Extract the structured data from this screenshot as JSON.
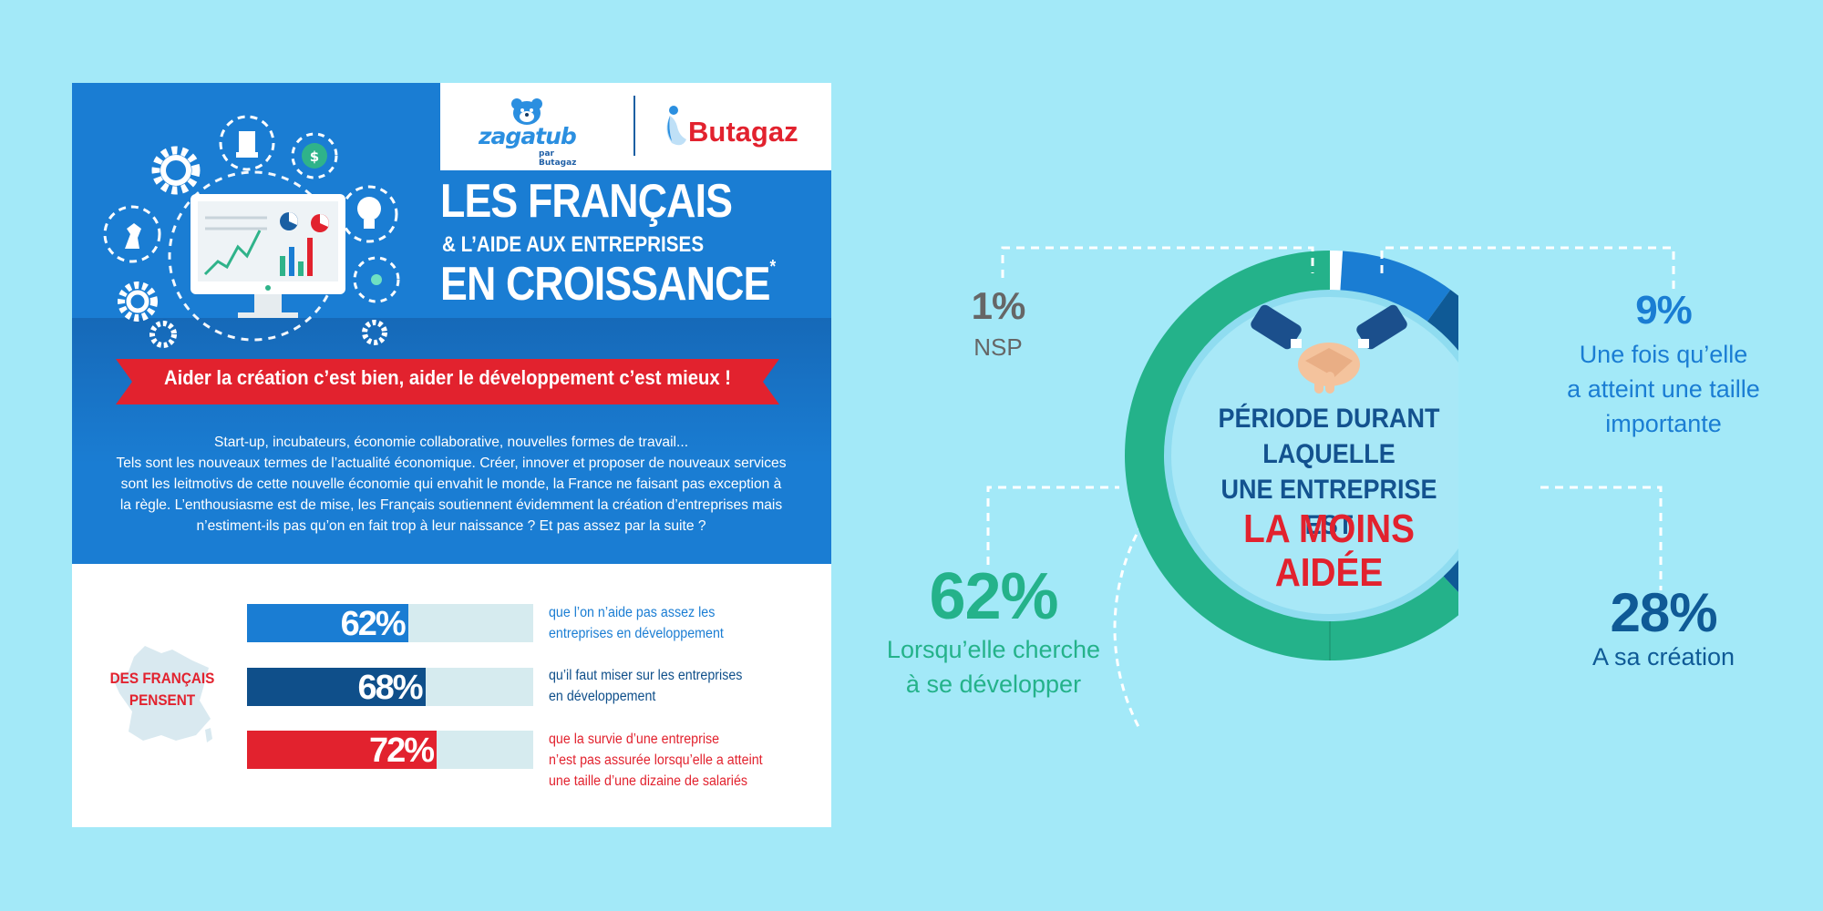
{
  "brand": {
    "zagatub_name": "zagatub",
    "zagatub_sub": "par Butagaz",
    "butagaz_name": "Butagaz"
  },
  "title": {
    "line1": "LES FRANÇAIS",
    "line2": "& L’AIDE AUX ENTREPRISES",
    "line3": "EN CROISSANCE",
    "asterisk": "*"
  },
  "ribbon": "Aider la création c’est bien, aider le développement c’est mieux !",
  "intro": [
    "Start-up, incubateurs, économie collaborative, nouvelles formes de travail...",
    "Tels sont les nouveaux termes de l’actualité économique. Créer, innover et proposer de nouveaux services",
    "sont les leitmotivs de cette nouvelle économie qui envahit le monde, la France ne faisant pas exception à",
    "la règle. L’enthousiasme est de mise, les Français soutiennent évidemment la création d’entreprises mais",
    "n’estiment-ils pas qu’on en fait trop à leur naissance ? Et pas assez par la suite ?"
  ],
  "opinion": {
    "label_line1": "DES FRANÇAIS",
    "label_line2": "PENSENT",
    "bars": [
      {
        "value_text": "62%",
        "value": 62,
        "color": "#1a7dd3",
        "desc_line1": "que l’on n’aide pas assez les",
        "desc_line2": "entreprises en développement",
        "desc_line3": "",
        "desc_color": "#1a7dd3"
      },
      {
        "value_text": "68%",
        "value": 68,
        "color": "#0f4f8a",
        "desc_line1": "qu’il faut miser sur les entreprises",
        "desc_line2": "en développement",
        "desc_line3": "",
        "desc_color": "#0f4f8a"
      },
      {
        "value_text": "72%",
        "value": 72,
        "color": "#e2222e",
        "desc_line1": "que la survie d’une entreprise",
        "desc_line2": "n’est pas assurée lorsqu’elle a atteint",
        "desc_line3": "une taille d’une dizaine de salariés",
        "desc_color": "#e2222e"
      }
    ]
  },
  "donut": {
    "center_line1": "PÉRIODE DURANT",
    "center_line2": "LAQUELLE",
    "center_line3": "UNE ENTREPRISE EST",
    "center_red_line1": "LA MOINS",
    "center_red_line2": "AIDÉE",
    "segments": [
      {
        "pct": "1%",
        "value": 1,
        "label_line1": "NSP",
        "label_line2": "",
        "label_line3": "",
        "color": "#ffffff"
      },
      {
        "pct": "9%",
        "value": 9,
        "label_line1": "Une fois qu’elle",
        "label_line2": "a atteint une taille",
        "label_line3": "importante",
        "color": "#1a7dd3"
      },
      {
        "pct": "28%",
        "value": 28,
        "label_line1": "A sa création",
        "label_line2": "",
        "label_line3": "",
        "color": "#0f5a96"
      },
      {
        "pct": "62%",
        "value": 62,
        "label_line1": "Lorsqu’elle cherche",
        "label_line2": "à se développer",
        "label_line3": "",
        "color": "#24b28a"
      }
    ]
  }
}
